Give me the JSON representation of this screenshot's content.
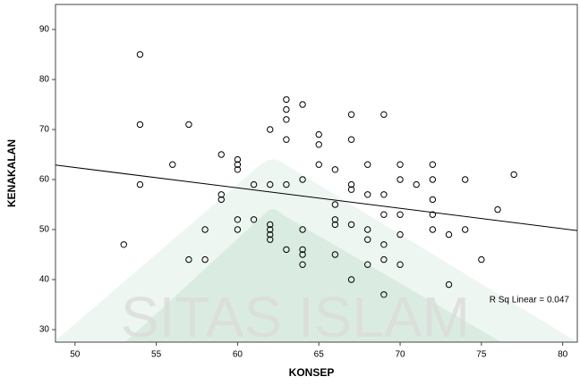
{
  "chart_data": {
    "type": "scatter",
    "x_label": "KONSEP",
    "y_label": "KENAKALAN",
    "xlim": [
      48.8,
      80.9
    ],
    "ylim": [
      27.5,
      95
    ],
    "xticks": [
      50,
      55,
      60,
      65,
      70,
      75,
      80
    ],
    "yticks": [
      30,
      40,
      50,
      60,
      70,
      80,
      90
    ],
    "color": "#000000",
    "x": [
      54,
      54,
      54,
      53,
      56,
      57,
      57,
      58,
      58,
      59,
      59,
      59,
      60,
      60,
      60,
      60,
      60,
      61,
      61,
      62,
      62,
      62,
      62,
      62,
      62,
      63,
      63,
      63,
      63,
      63,
      63,
      64,
      64,
      64,
      64,
      64,
      64,
      65,
      65,
      65,
      66,
      66,
      66,
      66,
      66,
      67,
      67,
      67,
      67,
      67,
      67,
      68,
      68,
      68,
      68,
      68,
      69,
      69,
      69,
      69,
      69,
      69,
      70,
      70,
      70,
      70,
      70,
      71,
      72,
      72,
      72,
      72,
      72,
      73,
      73,
      74,
      74,
      75,
      76,
      77
    ],
    "y": [
      85,
      71,
      59,
      47,
      63,
      71,
      44,
      50,
      44,
      65,
      57,
      56,
      64,
      63,
      62,
      52,
      50,
      52,
      59,
      70,
      59,
      51,
      50,
      49,
      48,
      76,
      74,
      72,
      68,
      59,
      46,
      75,
      60,
      50,
      46,
      45,
      43,
      69,
      67,
      63,
      62,
      55,
      52,
      51,
      45,
      73,
      68,
      59,
      58,
      51,
      40,
      63,
      57,
      50,
      48,
      43,
      73,
      57,
      53,
      47,
      44,
      37,
      63,
      60,
      53,
      49,
      43,
      59,
      63,
      60,
      56,
      53,
      50,
      49,
      39,
      60,
      50,
      44,
      54,
      61
    ],
    "fit_line": {
      "x": [
        48.8,
        80.9
      ],
      "y": [
        62.9,
        49.8
      ]
    },
    "annotation": "R Sq Linear = 0.047",
    "watermark": "SITAS ISLAM"
  }
}
